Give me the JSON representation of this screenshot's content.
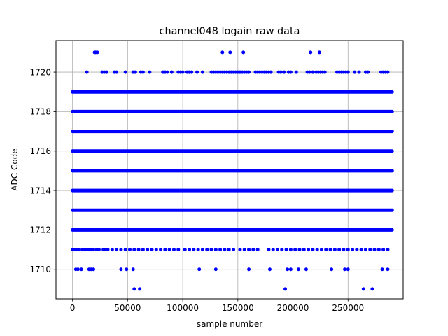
{
  "chart_data": {
    "type": "scatter",
    "title": "channel048 logain raw data",
    "xlabel": "sample number",
    "ylabel": "ADC Code",
    "xlim": [
      -15000,
      300000
    ],
    "ylim": [
      1708.5,
      1721.6
    ],
    "x_ticks": [
      0,
      50000,
      100000,
      150000,
      200000,
      250000
    ],
    "x_tick_labels": [
      "0",
      "50000",
      "100000",
      "150000",
      "200000",
      "250000"
    ],
    "y_ticks": [
      1710,
      1712,
      1714,
      1716,
      1718,
      1720
    ],
    "y_tick_labels": [
      "1710",
      "1712",
      "1714",
      "1716",
      "1718",
      "1720"
    ],
    "grid": true,
    "marker_color": "#0000ff",
    "series": [
      {
        "dense_bands": [
          {
            "y": 1712,
            "x_range": [
              0,
              290000
            ]
          },
          {
            "y": 1713,
            "x_range": [
              0,
              290000
            ]
          },
          {
            "y": 1714,
            "x_range": [
              0,
              290000
            ]
          },
          {
            "y": 1715,
            "x_range": [
              0,
              290000
            ]
          },
          {
            "y": 1716,
            "x_range": [
              0,
              290000
            ]
          },
          {
            "y": 1717,
            "x_range": [
              0,
              290000
            ]
          },
          {
            "y": 1718,
            "x_range": [
              0,
              290000
            ]
          },
          {
            "y": 1719,
            "x_range": [
              0,
              290000
            ]
          }
        ],
        "sparse_points": [
          {
            "y": 1721,
            "x": [
              20000,
              21000,
              22500,
              136000,
              143000,
              155000,
              216000,
              224000
            ]
          },
          {
            "y": 1720,
            "x": [
              13000,
              27000,
              29000,
              31000,
              38000,
              40000,
              48000,
              55000,
              57000,
              62000,
              64000,
              70000,
              82000,
              84000,
              86000,
              90000,
              96000,
              98000,
              100000,
              104000,
              106000,
              108000,
              113000,
              118000,
              126000,
              128000,
              130000,
              132000,
              134000,
              136000,
              138000,
              140000,
              142000,
              144000,
              146000,
              148000,
              150000,
              152000,
              154000,
              156000,
              158000,
              160000,
              166000,
              168000,
              170000,
              172000,
              174000,
              176000,
              178000,
              180000,
              187000,
              189000,
              192000,
              196000,
              198000,
              203000,
              213000,
              215000,
              218000,
              221000,
              223000,
              225000,
              227000,
              229000,
              240000,
              242000,
              244000,
              246000,
              248000,
              250000,
              256000,
              260000,
              266000,
              268000,
              280000,
              282000,
              284000,
              286000
            ]
          },
          {
            "y": 1711,
            "x": [
              0,
              2000,
              4000,
              6000,
              9000,
              11000,
              13000,
              15000,
              17000,
              19000,
              22000,
              24000,
              28000,
              30000,
              32000,
              36000,
              40000,
              44000,
              48000,
              52000,
              56000,
              60000,
              64000,
              68000,
              72000,
              76000,
              80000,
              84000,
              88000,
              92000,
              96000,
              102000,
              106000,
              110000,
              114000,
              118000,
              122000,
              126000,
              130000,
              134000,
              138000,
              142000,
              146000,
              152000,
              156000,
              160000,
              164000,
              168000,
              178000,
              182000,
              186000,
              190000,
              194000,
              198000,
              202000,
              206000,
              210000,
              214000,
              218000,
              222000,
              226000,
              230000,
              234000,
              238000,
              242000,
              246000,
              250000,
              254000,
              258000,
              262000,
              266000,
              270000,
              274000,
              278000,
              282000,
              286000
            ]
          },
          {
            "y": 1710,
            "x": [
              3000,
              5000,
              8000,
              15000,
              17000,
              19000,
              44000,
              49000,
              55000,
              115000,
              130000,
              160000,
              179000,
              195000,
              198000,
              205000,
              212000,
              235000,
              247000,
              250000,
              281000,
              286000
            ]
          },
          {
            "y": 1709,
            "x": [
              56000,
              61000,
              193000,
              264000,
              272000
            ]
          }
        ]
      }
    ]
  }
}
